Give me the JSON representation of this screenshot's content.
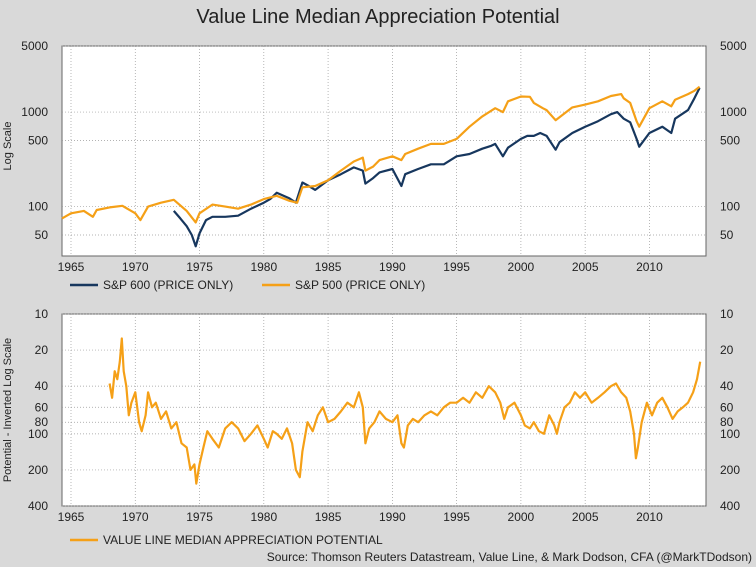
{
  "title": "Value Line Median Appreciation Potential",
  "source": "Source: Thomson Reuters Datastream, Value Line, & Mark Dodson, CFA (@MarkTDodson)",
  "colors": {
    "sp600": "#17375e",
    "sp500": "#f5a017",
    "vl": "#f5a017",
    "background": "#d9d9d9",
    "plot_bg": "#ffffff",
    "grid": "#9a9a9a"
  },
  "chart_data": [
    {
      "type": "line",
      "ylabel": "Log Scale",
      "y_scale": "log",
      "ylim": [
        30,
        5000
      ],
      "xlim": [
        1964.3,
        2014.4
      ],
      "x_ticks": [
        "1965",
        "1970",
        "1975",
        "1980",
        "1985",
        "1990",
        "1995",
        "2000",
        "2005",
        "2010"
      ],
      "y_ticks_left": [
        "5000",
        "1000",
        "500",
        "100",
        "50"
      ],
      "y_ticks_right": [
        "5000",
        "1000",
        "500",
        "100",
        "50"
      ],
      "grid": true,
      "legend_position": "bottom-left",
      "series": [
        {
          "name": "S&P 600 (PRICE ONLY)",
          "color": "#17375e",
          "x": [
            1973.0,
            1973.5,
            1974.0,
            1974.4,
            1974.7,
            1975.0,
            1975.5,
            1976.0,
            1977.0,
            1978.0,
            1979.0,
            1980.0,
            1980.5,
            1981.0,
            1982.0,
            1982.5,
            1983.0,
            1983.5,
            1984.0,
            1985.0,
            1986.0,
            1987.0,
            1987.7,
            1987.9,
            1988.5,
            1989.0,
            1990.0,
            1990.7,
            1991.0,
            1992.0,
            1993.0,
            1994.0,
            1995.0,
            1996.0,
            1997.0,
            1997.7,
            1998.0,
            1998.6,
            1999.0,
            2000.0,
            2000.5,
            2001.0,
            2001.5,
            2002.0,
            2002.7,
            2003.0,
            2004.0,
            2005.0,
            2006.0,
            2007.0,
            2007.5,
            2008.0,
            2008.5,
            2009.0,
            2009.2,
            2010.0,
            2011.0,
            2011.7,
            2012.0,
            2013.0,
            2013.5,
            2013.9
          ],
          "values": [
            90,
            75,
            62,
            50,
            38,
            52,
            72,
            78,
            78,
            80,
            95,
            110,
            120,
            140,
            122,
            110,
            180,
            165,
            150,
            190,
            220,
            260,
            240,
            175,
            200,
            230,
            250,
            165,
            220,
            250,
            280,
            280,
            340,
            360,
            410,
            440,
            460,
            340,
            420,
            520,
            560,
            560,
            600,
            560,
            400,
            480,
            600,
            700,
            800,
            950,
            1000,
            850,
            780,
            520,
            430,
            600,
            700,
            600,
            850,
            1050,
            1400,
            1800
          ]
        },
        {
          "name": "S&P 500 (PRICE ONLY)",
          "color": "#f5a017",
          "x": [
            1964.3,
            1965.0,
            1966.0,
            1966.7,
            1967.0,
            1968.0,
            1969.0,
            1970.0,
            1970.4,
            1971.0,
            1972.0,
            1973.0,
            1974.0,
            1974.7,
            1975.0,
            1976.0,
            1977.0,
            1978.0,
            1979.0,
            1980.0,
            1981.0,
            1982.0,
            1982.6,
            1983.0,
            1984.0,
            1985.0,
            1986.0,
            1987.0,
            1987.7,
            1987.9,
            1988.5,
            1989.0,
            1990.0,
            1990.7,
            1991.0,
            1992.0,
            1993.0,
            1994.0,
            1995.0,
            1996.0,
            1997.0,
            1998.0,
            1998.6,
            1999.0,
            2000.0,
            2000.7,
            2001.0,
            2001.7,
            2002.0,
            2002.7,
            2003.0,
            2004.0,
            2005.0,
            2006.0,
            2007.0,
            2007.8,
            2008.0,
            2008.5,
            2009.0,
            2009.2,
            2010.0,
            2011.0,
            2011.7,
            2012.0,
            2013.0,
            2013.5,
            2013.9
          ],
          "values": [
            75,
            85,
            90,
            78,
            92,
            98,
            102,
            85,
            72,
            100,
            110,
            118,
            90,
            68,
            85,
            105,
            100,
            95,
            105,
            120,
            130,
            115,
            110,
            160,
            165,
            190,
            240,
            300,
            330,
            240,
            265,
            310,
            340,
            310,
            360,
            410,
            460,
            460,
            520,
            700,
            900,
            1100,
            1000,
            1300,
            1460,
            1450,
            1250,
            1100,
            1050,
            820,
            880,
            1120,
            1200,
            1300,
            1480,
            1550,
            1400,
            1250,
            800,
            700,
            1100,
            1300,
            1150,
            1350,
            1550,
            1680,
            1850
          ]
        }
      ]
    },
    {
      "type": "line",
      "ylabel": "Potential - Inverted Log Scale",
      "y_scale": "log",
      "y_inverted": true,
      "ylim": [
        10,
        400
      ],
      "xlim": [
        1964.3,
        2014.4
      ],
      "x_ticks": [
        "1965",
        "1970",
        "1975",
        "1980",
        "1985",
        "1990",
        "1995",
        "2000",
        "2005",
        "2010"
      ],
      "y_ticks_left": [
        "10",
        "20",
        "40",
        "60",
        "80",
        "100",
        "200",
        "400"
      ],
      "y_ticks_right": [
        "10",
        "20",
        "40",
        "60",
        "80",
        "100",
        "200",
        "400"
      ],
      "grid": true,
      "legend_position": "bottom-left",
      "series": [
        {
          "name": "VALUE LINE MEDIAN APPRECIATION POTENTIAL",
          "color": "#f5a017",
          "x": [
            1968.0,
            1968.2,
            1968.4,
            1968.6,
            1968.8,
            1968.95,
            1969.1,
            1969.3,
            1969.5,
            1969.7,
            1970.0,
            1970.3,
            1970.5,
            1970.8,
            1971.0,
            1971.3,
            1971.6,
            1972.0,
            1972.4,
            1972.8,
            1973.2,
            1973.6,
            1974.0,
            1974.3,
            1974.6,
            1974.75,
            1975.0,
            1975.3,
            1975.6,
            1976.0,
            1976.5,
            1977.0,
            1977.5,
            1978.0,
            1978.5,
            1979.0,
            1979.5,
            1980.0,
            1980.3,
            1980.7,
            1981.0,
            1981.4,
            1981.8,
            1982.2,
            1982.5,
            1982.8,
            1983.0,
            1983.4,
            1983.8,
            1984.2,
            1984.6,
            1985.0,
            1985.5,
            1986.0,
            1986.5,
            1987.0,
            1987.4,
            1987.7,
            1987.9,
            1988.2,
            1988.6,
            1989.0,
            1989.5,
            1990.0,
            1990.4,
            1990.7,
            1990.9,
            1991.2,
            1991.6,
            1992.0,
            1992.5,
            1993.0,
            1993.5,
            1994.0,
            1994.5,
            1995.0,
            1995.5,
            1996.0,
            1996.5,
            1997.0,
            1997.5,
            1998.0,
            1998.4,
            1998.7,
            1999.0,
            1999.5,
            2000.0,
            2000.3,
            2000.7,
            2001.0,
            2001.4,
            2001.8,
            2002.2,
            2002.6,
            2002.8,
            2003.0,
            2003.4,
            2003.8,
            2004.2,
            2004.6,
            2005.0,
            2005.5,
            2006.0,
            2006.5,
            2007.0,
            2007.4,
            2007.8,
            2008.2,
            2008.5,
            2008.8,
            2008.95,
            2009.1,
            2009.4,
            2009.8,
            2010.2,
            2010.6,
            2011.0,
            2011.4,
            2011.8,
            2012.2,
            2012.6,
            2013.0,
            2013.4,
            2013.7,
            2013.95
          ],
          "values": [
            38,
            50,
            30,
            35,
            25,
            16,
            30,
            40,
            70,
            55,
            45,
            80,
            95,
            70,
            45,
            60,
            55,
            75,
            65,
            90,
            80,
            120,
            130,
            200,
            180,
            260,
            180,
            130,
            95,
            110,
            130,
            90,
            80,
            90,
            115,
            100,
            85,
            110,
            130,
            95,
            100,
            110,
            90,
            120,
            200,
            230,
            140,
            80,
            95,
            70,
            60,
            80,
            75,
            65,
            55,
            60,
            45,
            60,
            120,
            90,
            80,
            65,
            75,
            80,
            70,
            120,
            130,
            85,
            75,
            80,
            70,
            65,
            70,
            60,
            55,
            55,
            50,
            55,
            45,
            50,
            40,
            45,
            55,
            75,
            60,
            55,
            70,
            85,
            90,
            80,
            95,
            100,
            70,
            85,
            100,
            80,
            60,
            55,
            45,
            50,
            45,
            55,
            50,
            45,
            40,
            38,
            45,
            50,
            65,
            100,
            160,
            130,
            80,
            55,
            70,
            55,
            50,
            60,
            75,
            65,
            60,
            55,
            45,
            35,
            25
          ]
        }
      ]
    }
  ]
}
